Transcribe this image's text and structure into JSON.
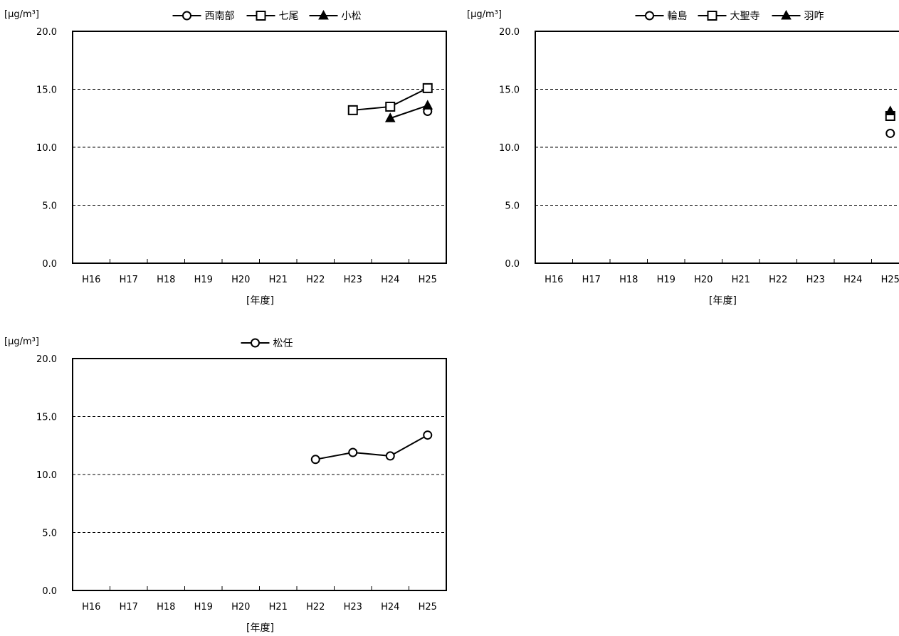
{
  "chart_data": [
    {
      "type": "line",
      "ylabel": "[μg/m³]",
      "xlabel": "[年度]",
      "categories": [
        "H16",
        "H17",
        "H18",
        "H19",
        "H20",
        "H21",
        "H22",
        "H23",
        "H24",
        "H25"
      ],
      "ylim": [
        0,
        20
      ],
      "yticks": [
        "0.0",
        "5.0",
        "10.0",
        "15.0",
        "20.0"
      ],
      "grid": "horizontal dashed",
      "legend_position": "top",
      "series": [
        {
          "name": "西南部",
          "marker": "circle",
          "values": [
            null,
            null,
            null,
            null,
            null,
            null,
            null,
            null,
            null,
            13.1
          ]
        },
        {
          "name": "七尾",
          "marker": "square",
          "values": [
            null,
            null,
            null,
            null,
            null,
            null,
            null,
            13.2,
            13.5,
            15.1
          ]
        },
        {
          "name": "小松",
          "marker": "triangle",
          "values": [
            null,
            null,
            null,
            null,
            null,
            null,
            null,
            null,
            12.5,
            13.6
          ]
        }
      ]
    },
    {
      "type": "line",
      "ylabel": "[μg/m³]",
      "xlabel": "[年度]",
      "categories": [
        "H16",
        "H17",
        "H18",
        "H19",
        "H20",
        "H21",
        "H22",
        "H23",
        "H24",
        "H25"
      ],
      "ylim": [
        0,
        20
      ],
      "yticks": [
        "0.0",
        "5.0",
        "10.0",
        "15.0",
        "20.0"
      ],
      "grid": "horizontal dashed",
      "legend_position": "top",
      "series": [
        {
          "name": "輪島",
          "marker": "circle",
          "values": [
            null,
            null,
            null,
            null,
            null,
            null,
            null,
            null,
            null,
            11.2
          ]
        },
        {
          "name": "大聖寺",
          "marker": "square",
          "values": [
            null,
            null,
            null,
            null,
            null,
            null,
            null,
            null,
            null,
            12.7
          ]
        },
        {
          "name": "羽咋",
          "marker": "triangle",
          "values": [
            null,
            null,
            null,
            null,
            null,
            null,
            null,
            null,
            null,
            13.1
          ]
        }
      ]
    },
    {
      "type": "line",
      "ylabel": "[μg/m³]",
      "xlabel": "[年度]",
      "categories": [
        "H16",
        "H17",
        "H18",
        "H19",
        "H20",
        "H21",
        "H22",
        "H23",
        "H24",
        "H25"
      ],
      "ylim": [
        0,
        20
      ],
      "yticks": [
        "0.0",
        "5.0",
        "10.0",
        "15.0",
        "20.0"
      ],
      "grid": "horizontal dashed",
      "legend_position": "top",
      "series": [
        {
          "name": "松任",
          "marker": "circle",
          "values": [
            null,
            null,
            null,
            null,
            null,
            null,
            11.3,
            11.9,
            11.6,
            13.4
          ]
        }
      ]
    }
  ]
}
